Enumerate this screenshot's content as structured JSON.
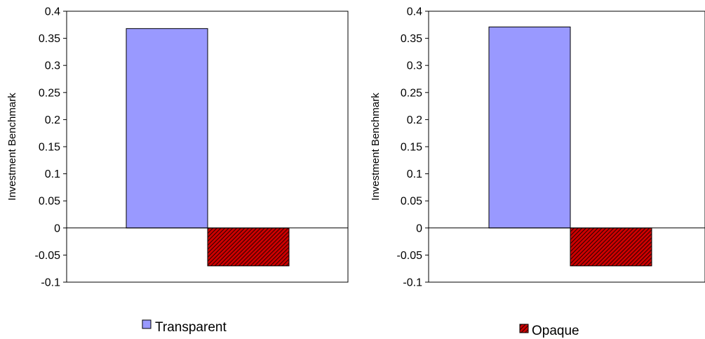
{
  "colors": {
    "transparent_fill": "#9999FF",
    "opaque_fill": "#CC0000",
    "opaque_hatch": "#000000",
    "axis": "#000000",
    "background": "#FFFFFF"
  },
  "chart_data": [
    {
      "type": "bar",
      "ylabel": "Investment Benchmark",
      "xlabel": "",
      "title": "",
      "ylim": [
        -0.1,
        0.4
      ],
      "yticks": [
        "0.4",
        "0.35",
        "0.3",
        "0.25",
        "0.2",
        "0.15",
        "0.1",
        "0.05",
        "0",
        "-0.05",
        "-0.1"
      ],
      "grid": false,
      "series": [
        {
          "name": "Transparent",
          "value": 0.368
        },
        {
          "name": "Opaque",
          "value": -0.07
        }
      ],
      "legend": {
        "placement": "bottom",
        "entries": [
          "Transparent"
        ]
      }
    },
    {
      "type": "bar",
      "ylabel": "Investment Benchmark",
      "xlabel": "",
      "title": "",
      "ylim": [
        -0.1,
        0.4
      ],
      "yticks": [
        "0.4",
        "0.35",
        "0.3",
        "0.25",
        "0.2",
        "0.15",
        "0.1",
        "0.05",
        "0",
        "-0.05",
        "-0.1"
      ],
      "grid": false,
      "series": [
        {
          "name": "Transparent",
          "value": 0.371
        },
        {
          "name": "Opaque",
          "value": -0.07
        }
      ],
      "legend": {
        "placement": "bottom",
        "entries": [
          "Opaque"
        ]
      }
    }
  ]
}
